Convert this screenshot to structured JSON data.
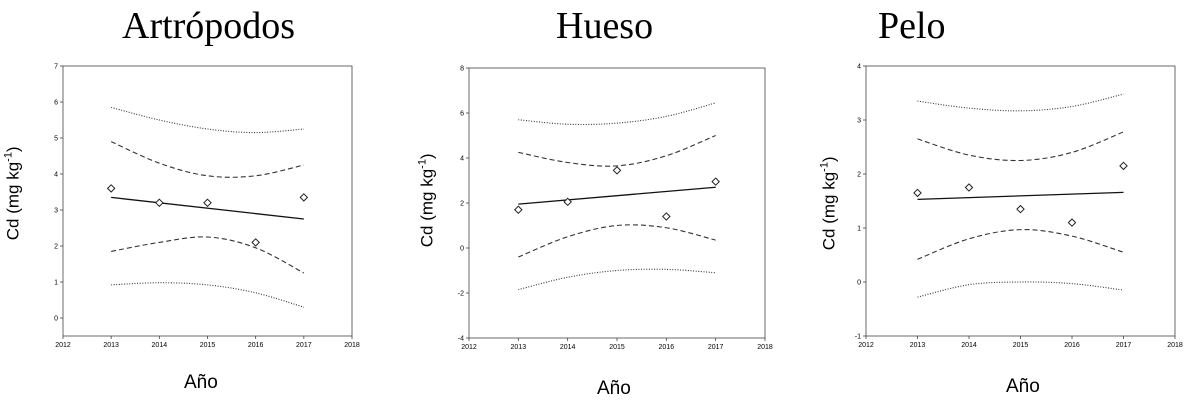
{
  "charts": [
    {
      "panel_title": "Artrópodos",
      "chart_data": {
        "type": "scatter",
        "xlabel": "Año",
        "ylabel_main": "Cd (mg kg",
        "ylabel_sup": "-1",
        "ylabel_end": ")",
        "xlim": [
          2012,
          2018
        ],
        "ylim": [
          -0.5,
          7
        ],
        "xticks": [
          2012,
          2013,
          2014,
          2015,
          2016,
          2017,
          2018
        ],
        "yticks": [
          0,
          1,
          2,
          3,
          4,
          5,
          6,
          7
        ],
        "points": {
          "x": [
            2013,
            2014,
            2015,
            2016,
            2017
          ],
          "y": [
            3.6,
            3.2,
            3.2,
            2.1,
            3.35
          ]
        },
        "fit": {
          "x": [
            2013,
            2017
          ],
          "y": [
            3.35,
            2.75
          ]
        },
        "confidence_upper": {
          "x": [
            2013,
            2014,
            2015,
            2016,
            2017
          ],
          "y": [
            4.9,
            4.3,
            3.95,
            3.95,
            4.25
          ]
        },
        "confidence_lower": {
          "x": [
            2013,
            2014,
            2015,
            2016,
            2017
          ],
          "y": [
            1.85,
            2.1,
            2.25,
            1.95,
            1.25
          ]
        },
        "prediction_upper": {
          "x": [
            2013,
            2014,
            2015,
            2016,
            2017
          ],
          "y": [
            5.85,
            5.5,
            5.25,
            5.15,
            5.25
          ]
        },
        "prediction_lower": {
          "x": [
            2013,
            2014,
            2015,
            2016,
            2017
          ],
          "y": [
            0.92,
            0.98,
            0.92,
            0.7,
            0.3
          ]
        }
      }
    },
    {
      "panel_title": "Hueso",
      "chart_data": {
        "type": "scatter",
        "xlabel": "Año",
        "ylabel_main": "Cd (mg kg",
        "ylabel_sup": "-1",
        "ylabel_end": ")",
        "xlim": [
          2012,
          2018
        ],
        "ylim": [
          -4,
          8
        ],
        "xticks": [
          2012,
          2013,
          2014,
          2015,
          2016,
          2017,
          2018
        ],
        "yticks": [
          -4,
          -2,
          0,
          2,
          4,
          6,
          8
        ],
        "points": {
          "x": [
            2013,
            2014,
            2015,
            2016,
            2017
          ],
          "y": [
            1.7,
            2.05,
            3.45,
            1.4,
            2.95
          ]
        },
        "fit": {
          "x": [
            2013,
            2017
          ],
          "y": [
            1.95,
            2.7
          ]
        },
        "confidence_upper": {
          "x": [
            2013,
            2014,
            2015,
            2016,
            2017
          ],
          "y": [
            4.25,
            3.8,
            3.65,
            4.1,
            5.0
          ]
        },
        "confidence_lower": {
          "x": [
            2013,
            2014,
            2015,
            2016,
            2017
          ],
          "y": [
            -0.4,
            0.5,
            1.0,
            0.9,
            0.35
          ]
        },
        "prediction_upper": {
          "x": [
            2013,
            2014,
            2015,
            2016,
            2017
          ],
          "y": [
            5.7,
            5.5,
            5.55,
            5.85,
            6.45
          ]
        },
        "prediction_lower": {
          "x": [
            2013,
            2014,
            2015,
            2016,
            2017
          ],
          "y": [
            -1.85,
            -1.3,
            -1.0,
            -0.95,
            -1.1
          ]
        }
      }
    },
    {
      "panel_title": "Pelo",
      "chart_data": {
        "type": "scatter",
        "xlabel": "Año",
        "ylabel_main": "Cd (mg kg",
        "ylabel_sup": "-1",
        "ylabel_end": ")",
        "xlim": [
          2012,
          2018
        ],
        "ylim": [
          -1,
          4
        ],
        "xticks": [
          2012,
          2013,
          2014,
          2015,
          2016,
          2017,
          2018
        ],
        "yticks": [
          -1,
          0,
          1,
          2,
          3,
          4
        ],
        "points": {
          "x": [
            2013,
            2014,
            2015,
            2016,
            2017
          ],
          "y": [
            1.65,
            1.75,
            1.35,
            1.1,
            2.15
          ]
        },
        "fit": {
          "x": [
            2013,
            2017
          ],
          "y": [
            1.53,
            1.66
          ]
        },
        "confidence_upper": {
          "x": [
            2013,
            2014,
            2015,
            2016,
            2017
          ],
          "y": [
            2.65,
            2.35,
            2.25,
            2.4,
            2.78
          ]
        },
        "confidence_lower": {
          "x": [
            2013,
            2014,
            2015,
            2016,
            2017
          ],
          "y": [
            0.42,
            0.8,
            0.97,
            0.85,
            0.55
          ]
        },
        "prediction_upper": {
          "x": [
            2013,
            2014,
            2015,
            2016,
            2017
          ],
          "y": [
            3.35,
            3.22,
            3.17,
            3.25,
            3.48
          ]
        },
        "prediction_lower": {
          "x": [
            2013,
            2014,
            2015,
            2016,
            2017
          ],
          "y": [
            -0.28,
            -0.05,
            0.0,
            -0.03,
            -0.15
          ]
        }
      }
    }
  ]
}
